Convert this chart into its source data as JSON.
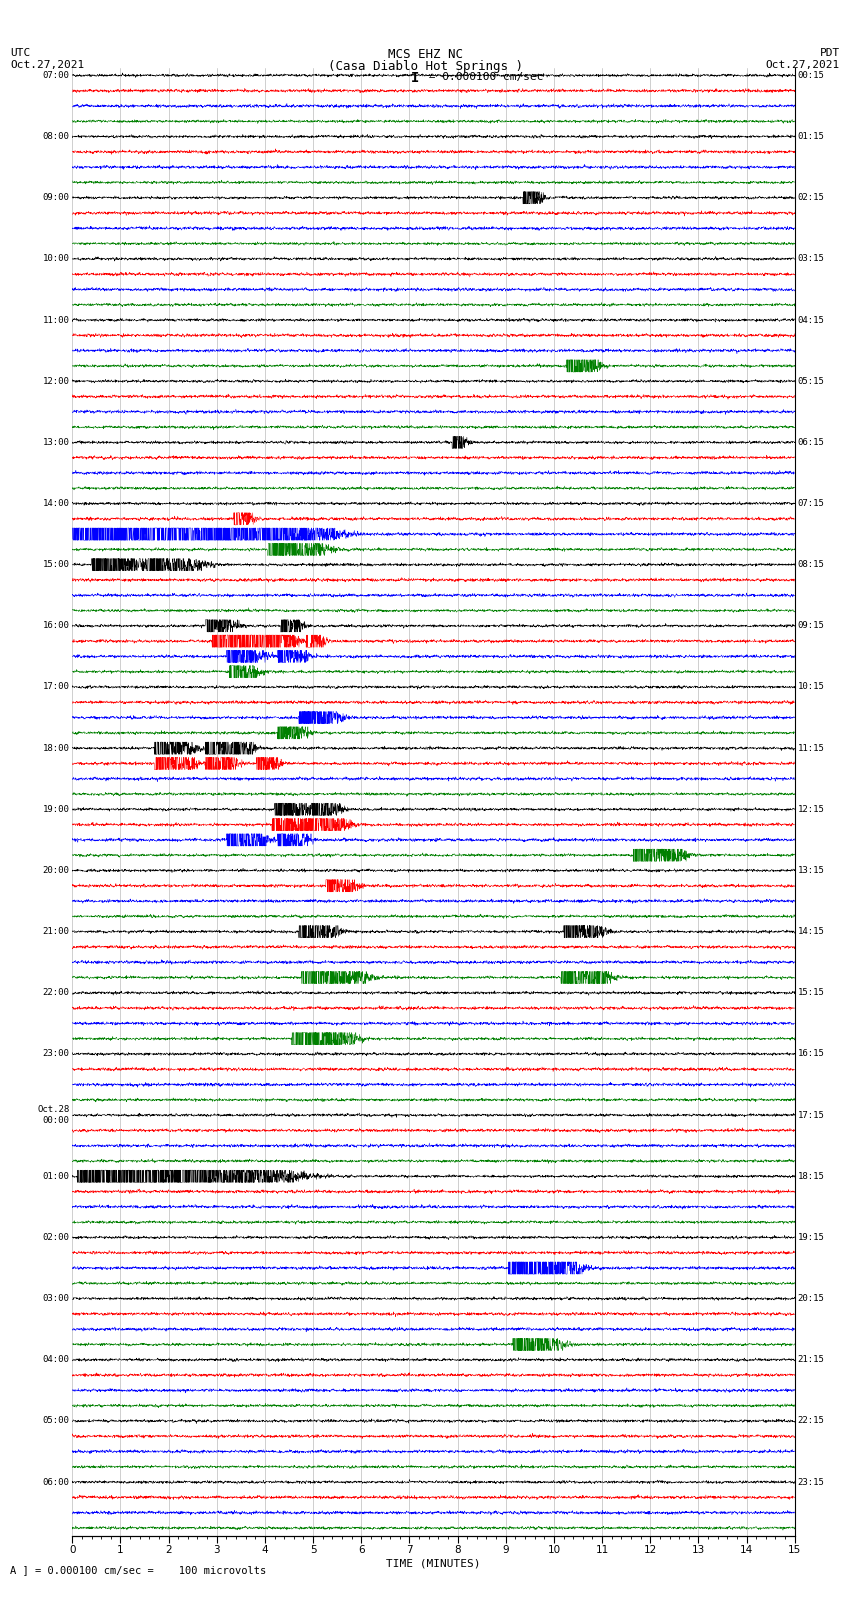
{
  "title_line1": "MCS EHZ NC",
  "title_line2": "(Casa Diablo Hot Springs )",
  "scale_label": " = 0.000100 cm/sec",
  "bottom_label": "A ] = 0.000100 cm/sec =    100 microvolts",
  "xlabel": "TIME (MINUTES)",
  "left_header_line1": "UTC",
  "left_header_line2": "Oct.27,2021",
  "right_header_line1": "PDT",
  "right_header_line2": "Oct.27,2021",
  "utc_labels": [
    "07:00",
    "08:00",
    "09:00",
    "10:00",
    "11:00",
    "12:00",
    "13:00",
    "14:00",
    "15:00",
    "16:00",
    "17:00",
    "18:00",
    "19:00",
    "20:00",
    "21:00",
    "22:00",
    "23:00",
    "Oct.28\n00:00",
    "01:00",
    "02:00",
    "03:00",
    "04:00",
    "05:00",
    "06:00"
  ],
  "pdt_labels": [
    "00:15",
    "01:15",
    "02:15",
    "03:15",
    "04:15",
    "05:15",
    "06:15",
    "07:15",
    "08:15",
    "09:15",
    "10:15",
    "11:15",
    "12:15",
    "13:15",
    "14:15",
    "15:15",
    "16:15",
    "17:15",
    "18:15",
    "19:15",
    "20:15",
    "21:15",
    "22:15",
    "23:15"
  ],
  "colors": [
    "black",
    "red",
    "blue",
    "green"
  ],
  "bg_color": "#ffffff",
  "n_hours": 24,
  "traces_per_hour": 4,
  "xmin": 0,
  "xmax": 15,
  "xticks_major": [
    0,
    1,
    2,
    3,
    4,
    5,
    6,
    7,
    8,
    9,
    10,
    11,
    12,
    13,
    14,
    15
  ],
  "vline_color": "#999999",
  "vline_lw": 0.4
}
